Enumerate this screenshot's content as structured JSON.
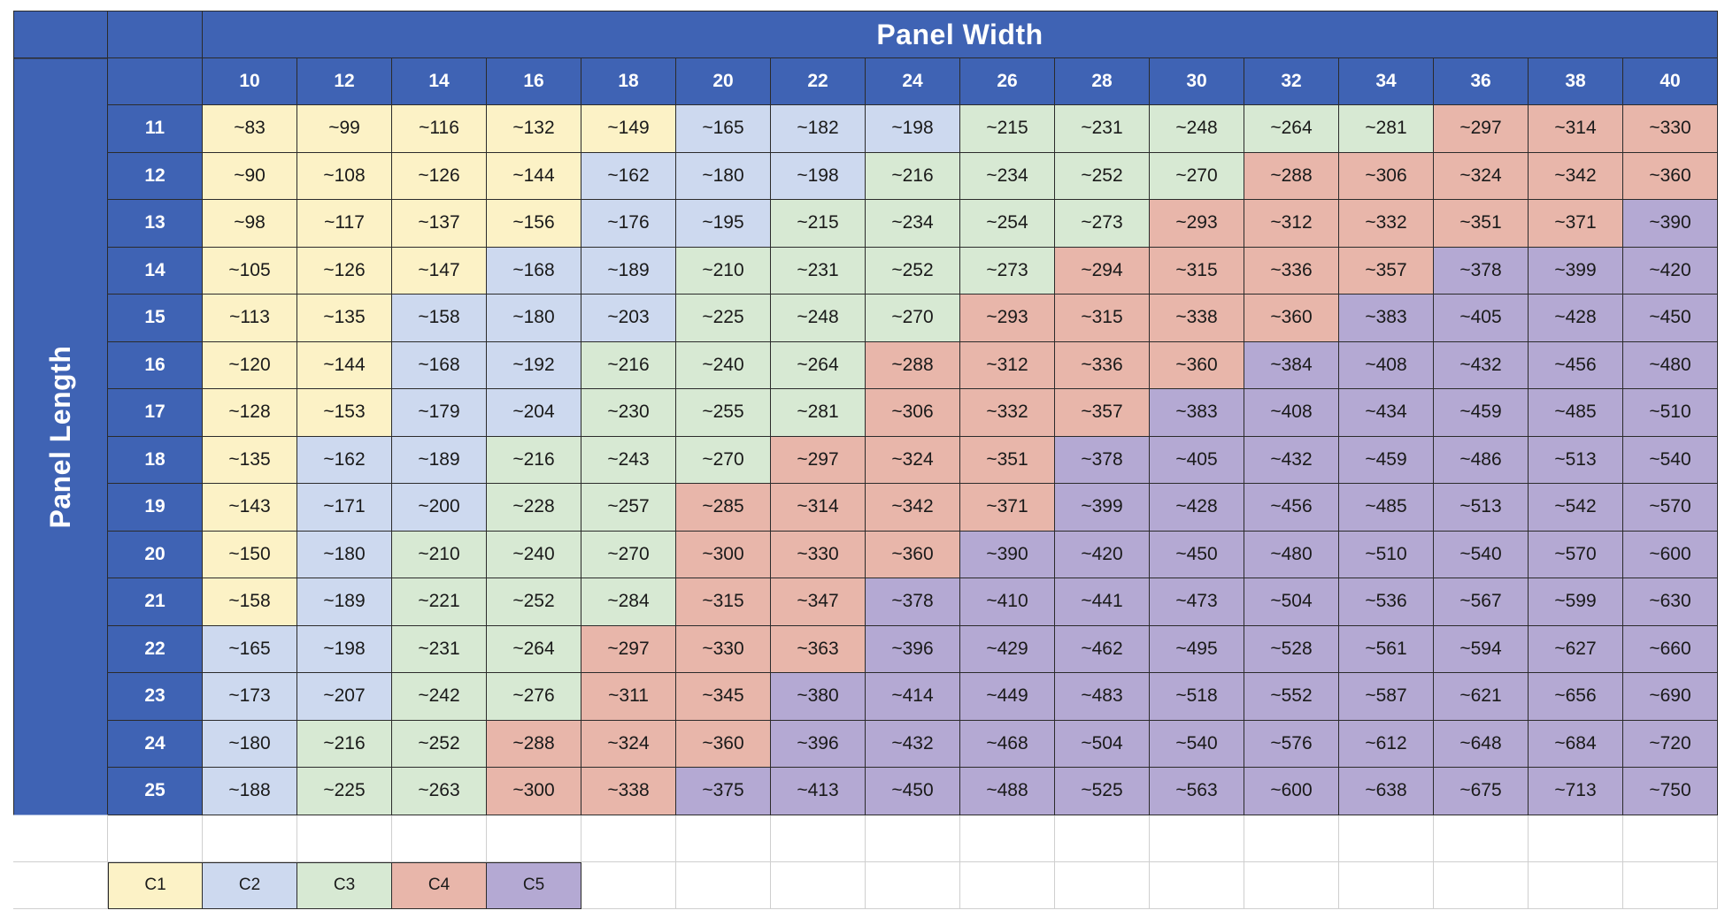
{
  "table": {
    "width_title": "Panel Width",
    "length_title": "Panel Length",
    "widths": [
      "10",
      "12",
      "14",
      "16",
      "18",
      "20",
      "22",
      "24",
      "26",
      "28",
      "30",
      "32",
      "34",
      "36",
      "38",
      "40"
    ],
    "rows": [
      {
        "length": "11",
        "values": [
          "~83",
          "~99",
          "~116",
          "~132",
          "~149",
          "~165",
          "~182",
          "~198",
          "~215",
          "~231",
          "~248",
          "~264",
          "~281",
          "~297",
          "~314",
          "~330"
        ],
        "classes": [
          1,
          1,
          1,
          1,
          1,
          2,
          2,
          2,
          3,
          3,
          3,
          3,
          3,
          4,
          4,
          4
        ]
      },
      {
        "length": "12",
        "values": [
          "~90",
          "~108",
          "~126",
          "~144",
          "~162",
          "~180",
          "~198",
          "~216",
          "~234",
          "~252",
          "~270",
          "~288",
          "~306",
          "~324",
          "~342",
          "~360"
        ],
        "classes": [
          1,
          1,
          1,
          1,
          2,
          2,
          2,
          3,
          3,
          3,
          3,
          4,
          4,
          4,
          4,
          4
        ]
      },
      {
        "length": "13",
        "values": [
          "~98",
          "~117",
          "~137",
          "~156",
          "~176",
          "~195",
          "~215",
          "~234",
          "~254",
          "~273",
          "~293",
          "~312",
          "~332",
          "~351",
          "~371",
          "~390"
        ],
        "classes": [
          1,
          1,
          1,
          1,
          2,
          2,
          3,
          3,
          3,
          3,
          4,
          4,
          4,
          4,
          4,
          5
        ]
      },
      {
        "length": "14",
        "values": [
          "~105",
          "~126",
          "~147",
          "~168",
          "~189",
          "~210",
          "~231",
          "~252",
          "~273",
          "~294",
          "~315",
          "~336",
          "~357",
          "~378",
          "~399",
          "~420"
        ],
        "classes": [
          1,
          1,
          1,
          2,
          2,
          3,
          3,
          3,
          3,
          4,
          4,
          4,
          4,
          5,
          5,
          5
        ]
      },
      {
        "length": "15",
        "values": [
          "~113",
          "~135",
          "~158",
          "~180",
          "~203",
          "~225",
          "~248",
          "~270",
          "~293",
          "~315",
          "~338",
          "~360",
          "~383",
          "~405",
          "~428",
          "~450"
        ],
        "classes": [
          1,
          1,
          2,
          2,
          2,
          3,
          3,
          3,
          4,
          4,
          4,
          4,
          5,
          5,
          5,
          5
        ]
      },
      {
        "length": "16",
        "values": [
          "~120",
          "~144",
          "~168",
          "~192",
          "~216",
          "~240",
          "~264",
          "~288",
          "~312",
          "~336",
          "~360",
          "~384",
          "~408",
          "~432",
          "~456",
          "~480"
        ],
        "classes": [
          1,
          1,
          2,
          2,
          3,
          3,
          3,
          4,
          4,
          4,
          4,
          5,
          5,
          5,
          5,
          5
        ]
      },
      {
        "length": "17",
        "values": [
          "~128",
          "~153",
          "~179",
          "~204",
          "~230",
          "~255",
          "~281",
          "~306",
          "~332",
          "~357",
          "~383",
          "~408",
          "~434",
          "~459",
          "~485",
          "~510"
        ],
        "classes": [
          1,
          1,
          2,
          2,
          3,
          3,
          3,
          4,
          4,
          4,
          5,
          5,
          5,
          5,
          5,
          5
        ]
      },
      {
        "length": "18",
        "values": [
          "~135",
          "~162",
          "~189",
          "~216",
          "~243",
          "~270",
          "~297",
          "~324",
          "~351",
          "~378",
          "~405",
          "~432",
          "~459",
          "~486",
          "~513",
          "~540"
        ],
        "classes": [
          1,
          2,
          2,
          3,
          3,
          3,
          4,
          4,
          4,
          5,
          5,
          5,
          5,
          5,
          5,
          5
        ]
      },
      {
        "length": "19",
        "values": [
          "~143",
          "~171",
          "~200",
          "~228",
          "~257",
          "~285",
          "~314",
          "~342",
          "~371",
          "~399",
          "~428",
          "~456",
          "~485",
          "~513",
          "~542",
          "~570"
        ],
        "classes": [
          1,
          2,
          2,
          3,
          3,
          4,
          4,
          4,
          4,
          5,
          5,
          5,
          5,
          5,
          5,
          5
        ]
      },
      {
        "length": "20",
        "values": [
          "~150",
          "~180",
          "~210",
          "~240",
          "~270",
          "~300",
          "~330",
          "~360",
          "~390",
          "~420",
          "~450",
          "~480",
          "~510",
          "~540",
          "~570",
          "~600"
        ],
        "classes": [
          1,
          2,
          3,
          3,
          3,
          4,
          4,
          4,
          5,
          5,
          5,
          5,
          5,
          5,
          5,
          5
        ]
      },
      {
        "length": "21",
        "values": [
          "~158",
          "~189",
          "~221",
          "~252",
          "~284",
          "~315",
          "~347",
          "~378",
          "~410",
          "~441",
          "~473",
          "~504",
          "~536",
          "~567",
          "~599",
          "~630"
        ],
        "classes": [
          1,
          2,
          3,
          3,
          3,
          4,
          4,
          5,
          5,
          5,
          5,
          5,
          5,
          5,
          5,
          5
        ]
      },
      {
        "length": "22",
        "values": [
          "~165",
          "~198",
          "~231",
          "~264",
          "~297",
          "~330",
          "~363",
          "~396",
          "~429",
          "~462",
          "~495",
          "~528",
          "~561",
          "~594",
          "~627",
          "~660"
        ],
        "classes": [
          2,
          2,
          3,
          3,
          4,
          4,
          4,
          5,
          5,
          5,
          5,
          5,
          5,
          5,
          5,
          5
        ]
      },
      {
        "length": "23",
        "values": [
          "~173",
          "~207",
          "~242",
          "~276",
          "~311",
          "~345",
          "~380",
          "~414",
          "~449",
          "~483",
          "~518",
          "~552",
          "~587",
          "~621",
          "~656",
          "~690"
        ],
        "classes": [
          2,
          2,
          3,
          3,
          4,
          4,
          5,
          5,
          5,
          5,
          5,
          5,
          5,
          5,
          5,
          5
        ]
      },
      {
        "length": "24",
        "values": [
          "~180",
          "~216",
          "~252",
          "~288",
          "~324",
          "~360",
          "~396",
          "~432",
          "~468",
          "~504",
          "~540",
          "~576",
          "~612",
          "~648",
          "~684",
          "~720"
        ],
        "classes": [
          2,
          3,
          3,
          4,
          4,
          4,
          5,
          5,
          5,
          5,
          5,
          5,
          5,
          5,
          5,
          5
        ]
      },
      {
        "length": "25",
        "values": [
          "~188",
          "~225",
          "~263",
          "~300",
          "~338",
          "~375",
          "~413",
          "~450",
          "~488",
          "~525",
          "~563",
          "~600",
          "~638",
          "~675",
          "~713",
          "~750"
        ],
        "classes": [
          2,
          3,
          3,
          4,
          4,
          5,
          5,
          5,
          5,
          5,
          5,
          5,
          5,
          5,
          5,
          5
        ]
      }
    ]
  },
  "legend": [
    {
      "label": "C1",
      "color": "#fcf2c6"
    },
    {
      "label": "C2",
      "color": "#cdd9ef"
    },
    {
      "label": "C3",
      "color": "#d7e9d3"
    },
    {
      "label": "C4",
      "color": "#e8b6aa"
    },
    {
      "label": "C5",
      "color": "#b4a9d3"
    }
  ]
}
